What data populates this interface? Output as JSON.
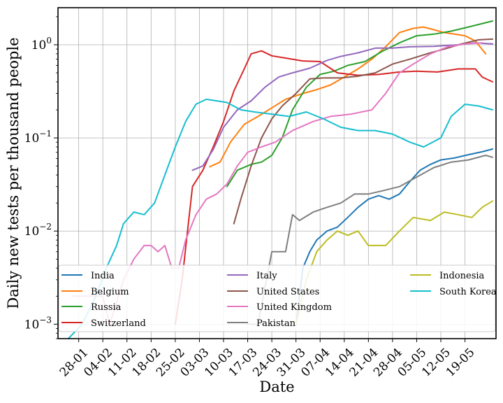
{
  "chart_data": {
    "type": "line",
    "xlabel": "Date",
    "ylabel": "Daily new tests per thousand people",
    "yscale": "log",
    "ylim": [
      0.0007,
      2.5
    ],
    "xlim": [
      "2020-01-22",
      "2020-05-28"
    ],
    "x_ticks": [
      "28-01",
      "04-02",
      "11-02",
      "18-02",
      "25-02",
      "03-03",
      "10-03",
      "17-03",
      "24-03",
      "31-03",
      "07-04",
      "14-04",
      "21-04",
      "28-04",
      "05-05",
      "12-05",
      "19-05"
    ],
    "x_tick_dates": [
      "2020-01-28",
      "2020-02-04",
      "2020-02-11",
      "2020-02-18",
      "2020-02-25",
      "2020-03-03",
      "2020-03-10",
      "2020-03-17",
      "2020-03-24",
      "2020-03-31",
      "2020-04-07",
      "2020-04-14",
      "2020-04-21",
      "2020-04-28",
      "2020-05-05",
      "2020-05-12",
      "2020-05-19"
    ],
    "y_ticks": [
      {
        "value": 0.001,
        "base": "10",
        "exp": "−3"
      },
      {
        "value": 0.01,
        "base": "10",
        "exp": "−2"
      },
      {
        "value": 0.1,
        "base": "10",
        "exp": "−1"
      },
      {
        "value": 1,
        "base": "10",
        "exp": "0"
      }
    ],
    "grid": true,
    "legend_placement": "lower center, 3 columns",
    "series": [
      {
        "name": "India",
        "color": "#1f77b4",
        "points": [
          [
            "2020-03-31",
            0.001
          ],
          [
            "2020-04-02",
            0.004
          ],
          [
            "2020-04-04",
            0.006
          ],
          [
            "2020-04-06",
            0.008
          ],
          [
            "2020-04-09",
            0.01
          ],
          [
            "2020-04-12",
            0.011
          ],
          [
            "2020-04-15",
            0.014
          ],
          [
            "2020-04-18",
            0.018
          ],
          [
            "2020-04-21",
            0.022
          ],
          [
            "2020-04-24",
            0.024
          ],
          [
            "2020-04-27",
            0.022
          ],
          [
            "2020-04-30",
            0.025
          ],
          [
            "2020-05-03",
            0.034
          ],
          [
            "2020-05-06",
            0.045
          ],
          [
            "2020-05-09",
            0.052
          ],
          [
            "2020-05-12",
            0.058
          ],
          [
            "2020-05-16",
            0.061
          ],
          [
            "2020-05-20",
            0.066
          ],
          [
            "2020-05-24",
            0.071
          ],
          [
            "2020-05-27",
            0.076
          ]
        ]
      },
      {
        "name": "Belgium",
        "color": "#ff7f0e",
        "points": [
          [
            "2020-03-06",
            0.049
          ],
          [
            "2020-03-09",
            0.055
          ],
          [
            "2020-03-12",
            0.09
          ],
          [
            "2020-03-16",
            0.14
          ],
          [
            "2020-03-20",
            0.17
          ],
          [
            "2020-03-24",
            0.21
          ],
          [
            "2020-03-28",
            0.26
          ],
          [
            "2020-04-02",
            0.3
          ],
          [
            "2020-04-06",
            0.33
          ],
          [
            "2020-04-10",
            0.37
          ],
          [
            "2020-04-14",
            0.45
          ],
          [
            "2020-04-18",
            0.55
          ],
          [
            "2020-04-22",
            0.7
          ],
          [
            "2020-04-26",
            0.95
          ],
          [
            "2020-04-30",
            1.35
          ],
          [
            "2020-05-04",
            1.5
          ],
          [
            "2020-05-07",
            1.55
          ],
          [
            "2020-05-10",
            1.45
          ],
          [
            "2020-05-13",
            1.35
          ],
          [
            "2020-05-16",
            1.3
          ],
          [
            "2020-05-19",
            1.25
          ],
          [
            "2020-05-22",
            1.1
          ],
          [
            "2020-05-25",
            0.8
          ]
        ]
      },
      {
        "name": "Russia",
        "color": "#2ca02c",
        "points": [
          [
            "2020-03-11",
            0.03
          ],
          [
            "2020-03-14",
            0.045
          ],
          [
            "2020-03-18",
            0.052
          ],
          [
            "2020-03-21",
            0.055
          ],
          [
            "2020-03-24",
            0.065
          ],
          [
            "2020-03-27",
            0.1
          ],
          [
            "2020-03-30",
            0.2
          ],
          [
            "2020-04-03",
            0.35
          ],
          [
            "2020-04-07",
            0.48
          ],
          [
            "2020-04-11",
            0.52
          ],
          [
            "2020-04-15",
            0.6
          ],
          [
            "2020-04-20",
            0.66
          ],
          [
            "2020-04-25",
            0.85
          ],
          [
            "2020-04-30",
            1.05
          ],
          [
            "2020-05-05",
            1.25
          ],
          [
            "2020-05-10",
            1.3
          ],
          [
            "2020-05-15",
            1.4
          ],
          [
            "2020-05-20",
            1.55
          ],
          [
            "2020-05-27",
            1.8
          ]
        ]
      },
      {
        "name": "Switzerland",
        "color": "#d62728",
        "points": [
          [
            "2020-02-25",
            0.001
          ],
          [
            "2020-02-27",
            0.003
          ],
          [
            "2020-03-01",
            0.03
          ],
          [
            "2020-03-04",
            0.045
          ],
          [
            "2020-03-07",
            0.08
          ],
          [
            "2020-03-10",
            0.15
          ],
          [
            "2020-03-13",
            0.32
          ],
          [
            "2020-03-16",
            0.55
          ],
          [
            "2020-03-18",
            0.8
          ],
          [
            "2020-03-21",
            0.86
          ],
          [
            "2020-03-24",
            0.76
          ],
          [
            "2020-03-28",
            0.72
          ],
          [
            "2020-04-02",
            0.67
          ],
          [
            "2020-04-07",
            0.66
          ],
          [
            "2020-04-12",
            0.5
          ],
          [
            "2020-04-18",
            0.47
          ],
          [
            "2020-04-24",
            0.48
          ],
          [
            "2020-04-30",
            0.51
          ],
          [
            "2020-05-05",
            0.52
          ],
          [
            "2020-05-11",
            0.51
          ],
          [
            "2020-05-17",
            0.55
          ],
          [
            "2020-05-22",
            0.55
          ],
          [
            "2020-05-24",
            0.45
          ],
          [
            "2020-05-27",
            0.4
          ]
        ]
      },
      {
        "name": "Italy",
        "color": "#9467bd",
        "points": [
          [
            "2020-03-01",
            0.045
          ],
          [
            "2020-03-04",
            0.05
          ],
          [
            "2020-03-07",
            0.075
          ],
          [
            "2020-03-10",
            0.13
          ],
          [
            "2020-03-14",
            0.2
          ],
          [
            "2020-03-18",
            0.25
          ],
          [
            "2020-03-22",
            0.35
          ],
          [
            "2020-03-26",
            0.45
          ],
          [
            "2020-03-30",
            0.5
          ],
          [
            "2020-04-04",
            0.56
          ],
          [
            "2020-04-09",
            0.68
          ],
          [
            "2020-04-13",
            0.75
          ],
          [
            "2020-04-18",
            0.82
          ],
          [
            "2020-04-23",
            0.92
          ],
          [
            "2020-04-28",
            0.92
          ],
          [
            "2020-05-03",
            0.95
          ],
          [
            "2020-05-10",
            0.96
          ],
          [
            "2020-05-17",
            1.0
          ],
          [
            "2020-05-22",
            1.05
          ],
          [
            "2020-05-27",
            1.02
          ]
        ]
      },
      {
        "name": "United States",
        "color": "#8c564b",
        "points": [
          [
            "2020-03-13",
            0.012
          ],
          [
            "2020-03-15",
            0.022
          ],
          [
            "2020-03-18",
            0.05
          ],
          [
            "2020-03-21",
            0.1
          ],
          [
            "2020-03-24",
            0.16
          ],
          [
            "2020-03-27",
            0.22
          ],
          [
            "2020-03-31",
            0.3
          ],
          [
            "2020-04-04",
            0.43
          ],
          [
            "2020-04-08",
            0.44
          ],
          [
            "2020-04-13",
            0.44
          ],
          [
            "2020-04-18",
            0.46
          ],
          [
            "2020-04-23",
            0.5
          ],
          [
            "2020-04-28",
            0.62
          ],
          [
            "2020-05-03",
            0.7
          ],
          [
            "2020-05-08",
            0.8
          ],
          [
            "2020-05-13",
            0.9
          ],
          [
            "2020-05-18",
            1.02
          ],
          [
            "2020-05-23",
            1.13
          ],
          [
            "2020-05-27",
            1.15
          ]
        ]
      },
      {
        "name": "United Kingdom",
        "color": "#e377c2",
        "points": [
          [
            "2020-01-26",
            0.002
          ],
          [
            "2020-02-04",
            0.002
          ],
          [
            "2020-02-06",
            0.001
          ],
          [
            "2020-02-10",
            0.003
          ],
          [
            "2020-02-13",
            0.005
          ],
          [
            "2020-02-16",
            0.007
          ],
          [
            "2020-02-18",
            0.007
          ],
          [
            "2020-02-20",
            0.006
          ],
          [
            "2020-02-22",
            0.007
          ],
          [
            "2020-02-24",
            0.004
          ],
          [
            "2020-02-26",
            0.004
          ],
          [
            "2020-02-28",
            0.008
          ],
          [
            "2020-03-02",
            0.015
          ],
          [
            "2020-03-05",
            0.022
          ],
          [
            "2020-03-08",
            0.025
          ],
          [
            "2020-03-11",
            0.032
          ],
          [
            "2020-03-14",
            0.05
          ],
          [
            "2020-03-17",
            0.07
          ],
          [
            "2020-03-21",
            0.08
          ],
          [
            "2020-03-25",
            0.09
          ],
          [
            "2020-03-30",
            0.12
          ],
          [
            "2020-04-05",
            0.15
          ],
          [
            "2020-04-10",
            0.17
          ],
          [
            "2020-04-16",
            0.18
          ],
          [
            "2020-04-22",
            0.2
          ],
          [
            "2020-04-26",
            0.3
          ],
          [
            "2020-04-30",
            0.5
          ],
          [
            "2020-05-04",
            0.62
          ],
          [
            "2020-05-09",
            0.8
          ],
          [
            "2020-05-14",
            0.95
          ],
          [
            "2020-05-19",
            1.02
          ],
          [
            "2020-05-24",
            1.05
          ]
        ]
      },
      {
        "name": "Pakistan",
        "color": "#7f7f7f",
        "points": [
          [
            "2020-03-17",
            0.001
          ],
          [
            "2020-03-20",
            0.001
          ],
          [
            "2020-03-24",
            0.006
          ],
          [
            "2020-03-28",
            0.006
          ],
          [
            "2020-03-30",
            0.015
          ],
          [
            "2020-04-01",
            0.013
          ],
          [
            "2020-04-05",
            0.016
          ],
          [
            "2020-04-09",
            0.018
          ],
          [
            "2020-04-13",
            0.02
          ],
          [
            "2020-04-17",
            0.025
          ],
          [
            "2020-04-21",
            0.025
          ],
          [
            "2020-04-25",
            0.027
          ],
          [
            "2020-04-30",
            0.03
          ],
          [
            "2020-05-05",
            0.038
          ],
          [
            "2020-05-10",
            0.048
          ],
          [
            "2020-05-15",
            0.055
          ],
          [
            "2020-05-20",
            0.058
          ],
          [
            "2020-05-25",
            0.065
          ],
          [
            "2020-05-27",
            0.062
          ]
        ]
      },
      {
        "name": "Indonesia",
        "color": "#bcbd22",
        "points": [
          [
            "2020-03-31",
            0.001
          ],
          [
            "2020-04-03",
            0.003
          ],
          [
            "2020-04-06",
            0.006
          ],
          [
            "2020-04-09",
            0.008
          ],
          [
            "2020-04-12",
            0.01
          ],
          [
            "2020-04-15",
            0.009
          ],
          [
            "2020-04-18",
            0.01
          ],
          [
            "2020-04-21",
            0.007
          ],
          [
            "2020-04-26",
            0.007
          ],
          [
            "2020-04-30",
            0.01
          ],
          [
            "2020-05-04",
            0.014
          ],
          [
            "2020-05-09",
            0.013
          ],
          [
            "2020-05-13",
            0.016
          ],
          [
            "2020-05-17",
            0.015
          ],
          [
            "2020-05-21",
            0.014
          ],
          [
            "2020-05-24",
            0.018
          ],
          [
            "2020-05-27",
            0.021
          ]
        ]
      },
      {
        "name": "South Korea",
        "color": "#17becf",
        "points": [
          [
            "2020-01-25",
            0.0007
          ],
          [
            "2020-01-29",
            0.001
          ],
          [
            "2020-02-02",
            0.002
          ],
          [
            "2020-02-05",
            0.004
          ],
          [
            "2020-02-08",
            0.007
          ],
          [
            "2020-02-10",
            0.012
          ],
          [
            "2020-02-13",
            0.016
          ],
          [
            "2020-02-16",
            0.015
          ],
          [
            "2020-02-19",
            0.02
          ],
          [
            "2020-02-22",
            0.04
          ],
          [
            "2020-02-25",
            0.08
          ],
          [
            "2020-02-28",
            0.15
          ],
          [
            "2020-03-02",
            0.23
          ],
          [
            "2020-03-05",
            0.26
          ],
          [
            "2020-03-08",
            0.25
          ],
          [
            "2020-03-11",
            0.24
          ],
          [
            "2020-03-15",
            0.2
          ],
          [
            "2020-03-19",
            0.19
          ],
          [
            "2020-03-24",
            0.18
          ],
          [
            "2020-03-29",
            0.17
          ],
          [
            "2020-04-03",
            0.19
          ],
          [
            "2020-04-08",
            0.16
          ],
          [
            "2020-04-13",
            0.13
          ],
          [
            "2020-04-18",
            0.12
          ],
          [
            "2020-04-23",
            0.12
          ],
          [
            "2020-04-28",
            0.11
          ],
          [
            "2020-05-03",
            0.09
          ],
          [
            "2020-05-07",
            0.08
          ],
          [
            "2020-05-12",
            0.1
          ],
          [
            "2020-05-15",
            0.17
          ],
          [
            "2020-05-19",
            0.23
          ],
          [
            "2020-05-23",
            0.22
          ],
          [
            "2020-05-27",
            0.2
          ]
        ]
      }
    ]
  }
}
